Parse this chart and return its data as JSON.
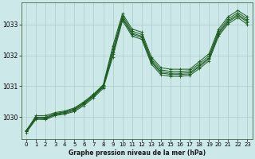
{
  "xlabel": "Graphe pression niveau de la mer (hPa)",
  "background_color": "#cce8e8",
  "grid_color": "#aacccc",
  "line_color": "#1a5c1a",
  "xlim": [
    -0.5,
    23.5
  ],
  "ylim": [
    1029.3,
    1033.7
  ],
  "yticks": [
    1030,
    1031,
    1032,
    1033
  ],
  "xticks": [
    0,
    1,
    2,
    3,
    4,
    5,
    6,
    7,
    8,
    9,
    10,
    11,
    12,
    13,
    14,
    15,
    16,
    17,
    18,
    19,
    20,
    21,
    22,
    23
  ],
  "lines": [
    [
      1029.55,
      1030.05,
      1030.05,
      1030.15,
      1030.2,
      1030.3,
      1030.5,
      1030.75,
      1031.05,
      1032.3,
      1033.35,
      1032.85,
      1032.75,
      1031.95,
      1031.6,
      1031.55,
      1031.55,
      1031.55,
      1031.8,
      1032.05,
      1032.85,
      1033.25,
      1033.45,
      1033.25
    ],
    [
      1029.58,
      1030.0,
      1030.0,
      1030.12,
      1030.17,
      1030.27,
      1030.47,
      1030.72,
      1031.02,
      1032.2,
      1033.28,
      1032.78,
      1032.68,
      1031.88,
      1031.53,
      1031.48,
      1031.48,
      1031.5,
      1031.73,
      1031.98,
      1032.78,
      1033.18,
      1033.38,
      1033.18
    ],
    [
      1029.56,
      1029.98,
      1029.97,
      1030.1,
      1030.15,
      1030.25,
      1030.45,
      1030.7,
      1031.0,
      1032.1,
      1033.22,
      1032.72,
      1032.62,
      1031.82,
      1031.47,
      1031.42,
      1031.42,
      1031.44,
      1031.67,
      1031.92,
      1032.72,
      1033.12,
      1033.32,
      1033.12
    ],
    [
      1029.54,
      1029.96,
      1029.95,
      1030.08,
      1030.12,
      1030.22,
      1030.42,
      1030.67,
      1030.97,
      1032.05,
      1033.18,
      1032.68,
      1032.58,
      1031.78,
      1031.43,
      1031.38,
      1031.38,
      1031.4,
      1031.63,
      1031.88,
      1032.68,
      1033.08,
      1033.28,
      1033.08
    ],
    [
      1029.5,
      1029.93,
      1029.92,
      1030.05,
      1030.1,
      1030.18,
      1030.38,
      1030.63,
      1030.93,
      1031.95,
      1033.12,
      1032.62,
      1032.52,
      1031.72,
      1031.37,
      1031.32,
      1031.32,
      1031.35,
      1031.57,
      1031.82,
      1032.62,
      1033.02,
      1033.22,
      1033.0
    ]
  ]
}
